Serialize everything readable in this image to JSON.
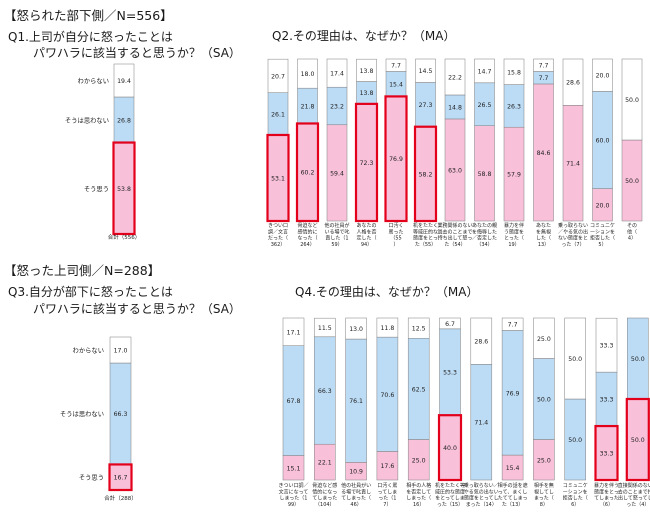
{
  "section1": {
    "heading": "【怒られた部下側／N=556】",
    "q1": {
      "line1": "Q1.上司が自分に怒ったことは",
      "line2": "パワハラに該当すると思うか？（SA）"
    },
    "q2": {
      "title": "Q2.その理由は、なぜか？（MA）"
    }
  },
  "section2": {
    "heading": "【怒った上司側／N=288】",
    "q3": {
      "line1": "Q3.自分が部下に怒ったことは",
      "line2": "パワハラに該当すると思うか？（SA）"
    },
    "q4": {
      "title": "Q4.その理由は、なぜか？（MA）"
    }
  },
  "colors": {
    "agree": "#f9c0da",
    "disagree": "#bcdcf6",
    "unknown": "#ffffff",
    "highlight": "#e3001b",
    "outline": "#7f7f7f"
  },
  "chart_data": [
    {
      "id": "q1",
      "type": "bar",
      "stacked": true,
      "ylim": [
        0,
        100
      ],
      "categories": [
        "合計（556）"
      ],
      "series": [
        {
          "name": "そう思う",
          "values": [
            53.8
          ]
        },
        {
          "name": "そうは思わない",
          "values": [
            26.8
          ]
        },
        {
          "name": "わからない",
          "values": [
            19.4
          ]
        }
      ],
      "highlight": [
        [
          0
        ]
      ]
    },
    {
      "id": "q2",
      "type": "bar",
      "stacked": true,
      "ylim": [
        0,
        100
      ],
      "categories": [
        "きつい口調／文言だった（362）",
        "脅迫など感情的になった（264）",
        "他の社員がいる場で叱責した（159）",
        "あなたの人格を否定した（94）",
        "口汚く罵った（55）",
        "机をたたく等威圧的な態度をとった（55）",
        "業務関係のない過去のことまで持ち出して怒った（54）",
        "あなたの親を侮辱した／否定した（34）",
        "暴力を伴う態度をとった（19）",
        "あなたを無視した（13）",
        "乗っ取らない／やる気の出ない態度をとった（7）",
        "コミュニケーションを拒否した（5）",
        "その他（4）"
      ],
      "series": [
        {
          "name": "そう思う",
          "values": [
            53.1,
            60.2,
            59.4,
            72.3,
            76.9,
            58.2,
            63.0,
            58.8,
            57.9,
            84.6,
            71.4,
            20.0,
            50.0
          ]
        },
        {
          "name": "そうは思わない",
          "values": [
            26.1,
            21.8,
            23.2,
            13.8,
            15.4,
            27.3,
            14.8,
            26.5,
            26.3,
            7.7,
            0.0,
            60.0,
            0.0
          ]
        },
        {
          "name": "わからない",
          "values": [
            20.7,
            18.0,
            17.4,
            13.8,
            7.7,
            14.5,
            22.2,
            14.7,
            15.8,
            7.7,
            28.6,
            20.0,
            50.0
          ]
        }
      ],
      "highlight": [
        [
          0
        ],
        [
          1
        ],
        [
          3
        ],
        [
          4
        ],
        [
          5
        ]
      ]
    },
    {
      "id": "q3",
      "type": "bar",
      "stacked": true,
      "ylim": [
        0,
        100
      ],
      "categories": [
        "合計（288）"
      ],
      "series": [
        {
          "name": "そう思う",
          "values": [
            16.7
          ]
        },
        {
          "name": "そうは思わない",
          "values": [
            66.3
          ]
        },
        {
          "name": "わからない",
          "values": [
            17.0
          ]
        }
      ],
      "highlight": [
        [
          0
        ]
      ]
    },
    {
      "id": "q4",
      "type": "bar",
      "stacked": true,
      "ylim": [
        0,
        100
      ],
      "categories": [
        "きつい口調／文言になってしまった（199）",
        "脅迫など感情的になってしまった（104）",
        "他の社員がいる場で叱責してしまった（46）",
        "口汚く罵ってしまった（17）",
        "相手の人格を否定してしまった（16）",
        "机をたたく等威圧的な態度をとってしまった（15）",
        "乗っ取らない／やる気の出ない態度をとってしまった（14）",
        "相手の話を遮って、まくしたててしまった（13）",
        "相手を無視してしまった（8）",
        "コミュニケーションを拒否した（6）",
        "暴力を伴う態度をとってしまった（6）",
        "直接関係のない過去のことまで持ち出して怒ってしまった（4）"
      ],
      "series": [
        {
          "name": "そう思う",
          "values": [
            15.1,
            22.1,
            10.9,
            17.6,
            25.0,
            40.0,
            0.0,
            15.4,
            25.0,
            0.0,
            33.3,
            50.0
          ]
        },
        {
          "name": "そうは思わない",
          "values": [
            67.8,
            66.3,
            76.1,
            70.6,
            62.5,
            53.3,
            71.4,
            76.9,
            50.0,
            50.0,
            33.3,
            50.0
          ]
        },
        {
          "name": "わからない",
          "values": [
            17.1,
            11.5,
            13.0,
            11.8,
            12.5,
            6.7,
            28.6,
            7.7,
            25.0,
            50.0,
            33.3,
            0.0
          ]
        }
      ],
      "highlight": [
        [
          5
        ],
        [
          10
        ],
        [
          11
        ]
      ]
    }
  ]
}
